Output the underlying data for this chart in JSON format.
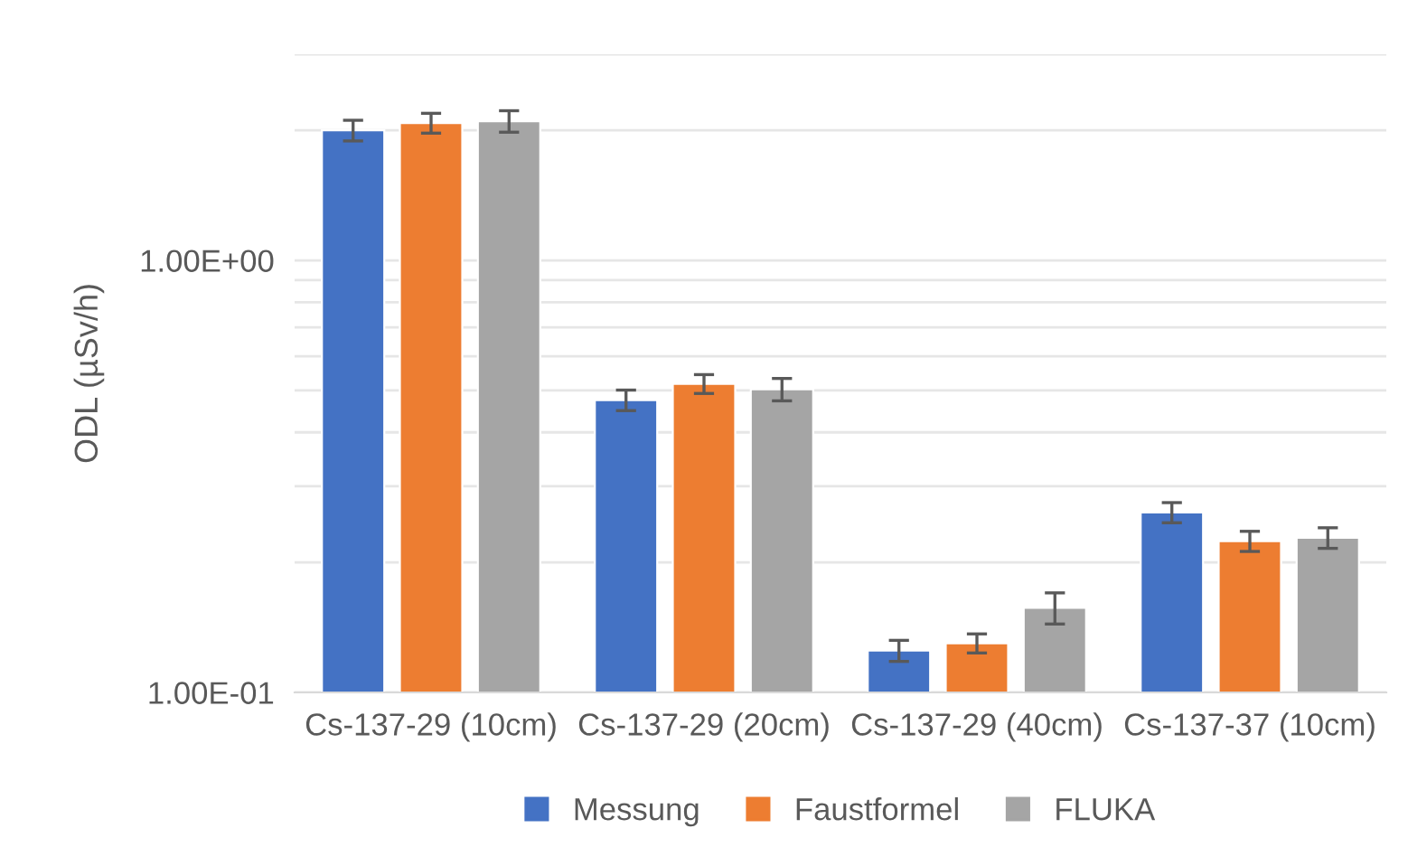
{
  "chart_data": {
    "type": "bar",
    "ylabel": "ODL (µSv/h)",
    "log": true,
    "categories": [
      "Cs-137-29 (10cm)",
      "Cs-137-29 (20cm)",
      "Cs-137-29 (40cm)",
      "Cs-137-37 (10cm)"
    ],
    "series": [
      {
        "name": "Messung",
        "color": "#4472c4",
        "values": [
          2.0,
          0.475,
          0.125,
          0.261
        ],
        "errors": [
          0.11,
          0.026,
          0.007,
          0.014
        ]
      },
      {
        "name": "Faustformel",
        "color": "#ed7d31",
        "values": [
          2.08,
          0.518,
          0.13,
          0.224
        ],
        "errors": [
          0.11,
          0.026,
          0.0066,
          0.012
        ]
      },
      {
        "name": "FLUKA",
        "color": "#a5a5a5",
        "values": [
          2.1,
          0.503,
          0.157,
          0.228
        ],
        "errors": [
          0.12,
          0.03,
          0.013,
          0.0125
        ]
      }
    ],
    "ylim": [
      0.1,
      3
    ],
    "yticks": [
      {
        "value": 0.1,
        "label": "1.00E-01"
      },
      {
        "value": 0.2,
        "label": null
      },
      {
        "value": 0.3,
        "label": null
      },
      {
        "value": 0.4,
        "label": null
      },
      {
        "value": 0.5,
        "label": null
      },
      {
        "value": 0.6,
        "label": null
      },
      {
        "value": 0.7,
        "label": null
      },
      {
        "value": 0.8,
        "label": null
      },
      {
        "value": 0.9,
        "label": null
      },
      {
        "value": 1,
        "label": "1.00E+00"
      },
      {
        "value": 2,
        "label": null
      },
      {
        "value": 3,
        "label": null
      }
    ],
    "grid": "y",
    "legend": "bottom"
  }
}
